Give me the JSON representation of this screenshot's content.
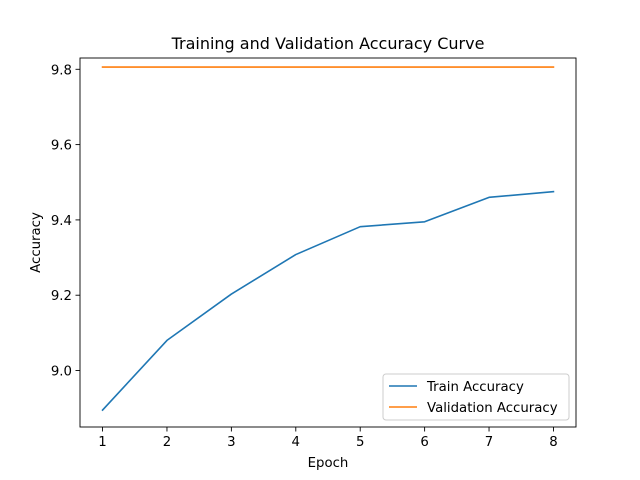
{
  "chart_data": {
    "type": "line",
    "title": "Training and Validation Accuracy Curve",
    "xlabel": "Epoch",
    "ylabel": "Accuracy",
    "x": [
      1,
      2,
      3,
      4,
      5,
      6,
      7,
      8
    ],
    "xlim": [
      0.65,
      8.35
    ],
    "ylim": [
      8.85,
      9.83
    ],
    "xticks": [
      1,
      2,
      3,
      4,
      5,
      6,
      7,
      8
    ],
    "yticks": [
      9.0,
      9.2,
      9.4,
      9.6,
      9.8
    ],
    "grid": false,
    "legend_position": "lower-right",
    "series": [
      {
        "name": "Train Accuracy",
        "color": "#1f77b4",
        "values": [
          8.895,
          9.08,
          9.203,
          9.308,
          9.382,
          9.395,
          9.46,
          9.475
        ]
      },
      {
        "name": "Validation Accuracy",
        "color": "#ff7f0e",
        "values": [
          9.806,
          9.806,
          9.806,
          9.806,
          9.806,
          9.806,
          9.806,
          9.806
        ]
      }
    ]
  }
}
